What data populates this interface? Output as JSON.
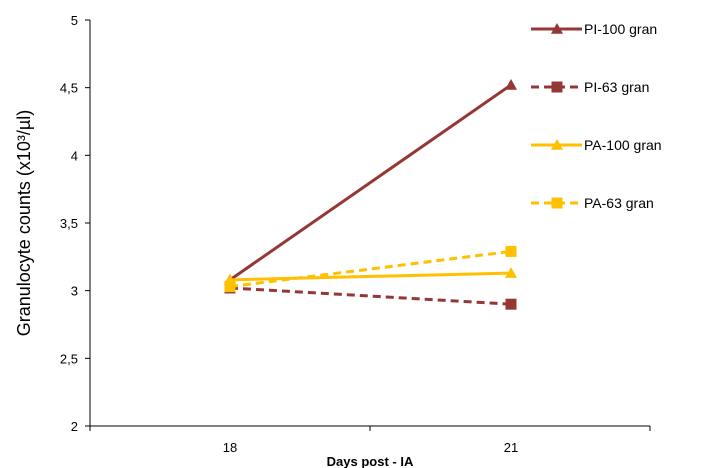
{
  "chart_data": {
    "type": "line",
    "x": [
      "18",
      "21"
    ],
    "xlabel": "Days post - IA",
    "ylabel": "Granulocyte counts (x10³/µl)",
    "ylim": [
      2,
      5
    ],
    "yticks": [
      "2",
      "2,5",
      "3",
      "3,5",
      "4",
      "4,5",
      "5"
    ],
    "grid": false,
    "legend_position": "right",
    "series": [
      {
        "name": "PI-100 gran",
        "values": [
          3.08,
          4.52
        ],
        "color": "#953735",
        "dash": "solid",
        "marker": "triangle"
      },
      {
        "name": "PI-63 gran",
        "values": [
          3.02,
          2.9
        ],
        "color": "#953735",
        "dash": "dashed",
        "marker": "square"
      },
      {
        "name": "PA-100 gran",
        "values": [
          3.08,
          3.13
        ],
        "color": "#ffc000",
        "dash": "solid",
        "marker": "triangle"
      },
      {
        "name": "PA-63 gran",
        "values": [
          3.03,
          3.29
        ],
        "color": "#ffc000",
        "dash": "dashed",
        "marker": "square"
      }
    ]
  }
}
